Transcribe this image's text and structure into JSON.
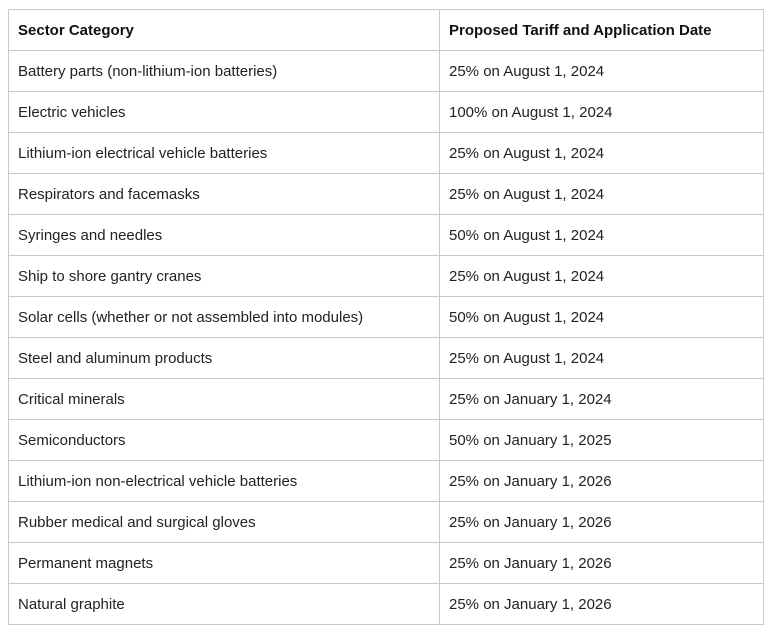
{
  "table": {
    "header": [
      "Sector Category",
      "Proposed Tariff and Application Date"
    ],
    "rows": [
      [
        "Battery parts (non-lithium-ion batteries)",
        "25% on August 1, 2024"
      ],
      [
        "Electric vehicles",
        "100% on August 1, 2024"
      ],
      [
        "Lithium-ion electrical vehicle batteries",
        "25% on August 1, 2024"
      ],
      [
        "Respirators and facemasks",
        "25% on August 1, 2024"
      ],
      [
        "Syringes and needles",
        "50% on August 1, 2024"
      ],
      [
        "Ship to shore gantry cranes",
        "25% on August 1, 2024"
      ],
      [
        "Solar cells (whether or not assembled into modules)",
        "50% on August 1, 2024"
      ],
      [
        "Steel and aluminum products",
        "25% on August 1, 2024"
      ],
      [
        "Critical minerals",
        "25% on January 1, 2024"
      ],
      [
        "Semiconductors",
        "50% on January 1, 2025"
      ],
      [
        "Lithium-ion non-electrical vehicle batteries",
        "25% on January 1, 2026"
      ],
      [
        "Rubber medical and surgical gloves",
        "25% on January 1, 2026"
      ],
      [
        "Permanent magnets",
        "25% on January 1, 2026"
      ],
      [
        "Natural graphite",
        "25% on January 1, 2026"
      ]
    ]
  }
}
